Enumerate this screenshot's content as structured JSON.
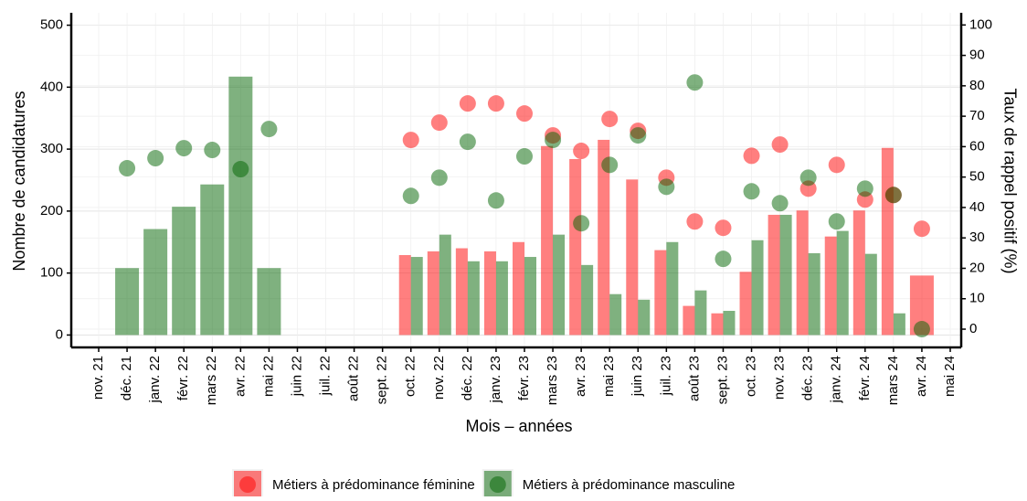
{
  "chart_data": {
    "type": "combo",
    "categories": [
      "nov. 21",
      "déc. 21",
      "janv. 22",
      "févr. 22",
      "mars 22",
      "avr. 22",
      "mai 22",
      "juin 22",
      "juil. 22",
      "août 22",
      "sept. 22",
      "oct. 22",
      "nov. 22",
      "déc. 22",
      "janv. 23",
      "févr. 23",
      "mars 23",
      "avr. 23",
      "mai 23",
      "juin 23",
      "juil. 23",
      "août 23",
      "sept. 23",
      "oct. 23",
      "nov. 23",
      "déc. 23",
      "janv. 24",
      "févr. 24",
      "mars 24",
      "avr. 24",
      "mai 24"
    ],
    "series": [
      {
        "name": "Métiers à prédominance féminine",
        "color": "#ff0000",
        "values": [
          null,
          null,
          null,
          null,
          null,
          null,
          null,
          null,
          null,
          null,
          null,
          129,
          135,
          140,
          135,
          150,
          305,
          284,
          315,
          251,
          137,
          47,
          35,
          102,
          194,
          201,
          159,
          201,
          302,
          96,
          null
        ],
        "rates": [
          null,
          null,
          null,
          null,
          null,
          null,
          null,
          null,
          null,
          null,
          null,
          62.2,
          67.9,
          74.2,
          74.2,
          70.9,
          63.7,
          58.6,
          69.1,
          65.2,
          49.8,
          35.4,
          33.3,
          57,
          60.7,
          46.2,
          54,
          42.6,
          44.1,
          33,
          null
        ]
      },
      {
        "name": "Métiers à prédominance masculine",
        "color": "#006400",
        "values": [
          null,
          108,
          171,
          207,
          243,
          417,
          108,
          null,
          null,
          null,
          null,
          126,
          162,
          119,
          119,
          126,
          162,
          113,
          66,
          57,
          150,
          72,
          39,
          153,
          194,
          132,
          168,
          131,
          35,
          null,
          null
        ],
        "rates": [
          null,
          52.9,
          56.2,
          59.5,
          58.9,
          52.6,
          65.8,
          null,
          null,
          null,
          null,
          43.8,
          49.8,
          61.6,
          42.3,
          56.8,
          62.2,
          34.8,
          54,
          63.7,
          46.8,
          81.1,
          23.1,
          45.3,
          41.4,
          49.8,
          35.4,
          46.2,
          44.1,
          0,
          null
        ]
      }
    ],
    "ylim": [
      -20,
      520
    ],
    "yticks": [
      0,
      100,
      200,
      300,
      400,
      500
    ],
    "y2lim": [
      -6,
      104
    ],
    "y2ticks": [
      0,
      10,
      20,
      30,
      40,
      50,
      60,
      70,
      80,
      90,
      100
    ],
    "ylabel": "Nombre de candidatures",
    "y2label": "Taux de rappel positif (%)",
    "xlabel": "Mois – années",
    "grid": true
  }
}
